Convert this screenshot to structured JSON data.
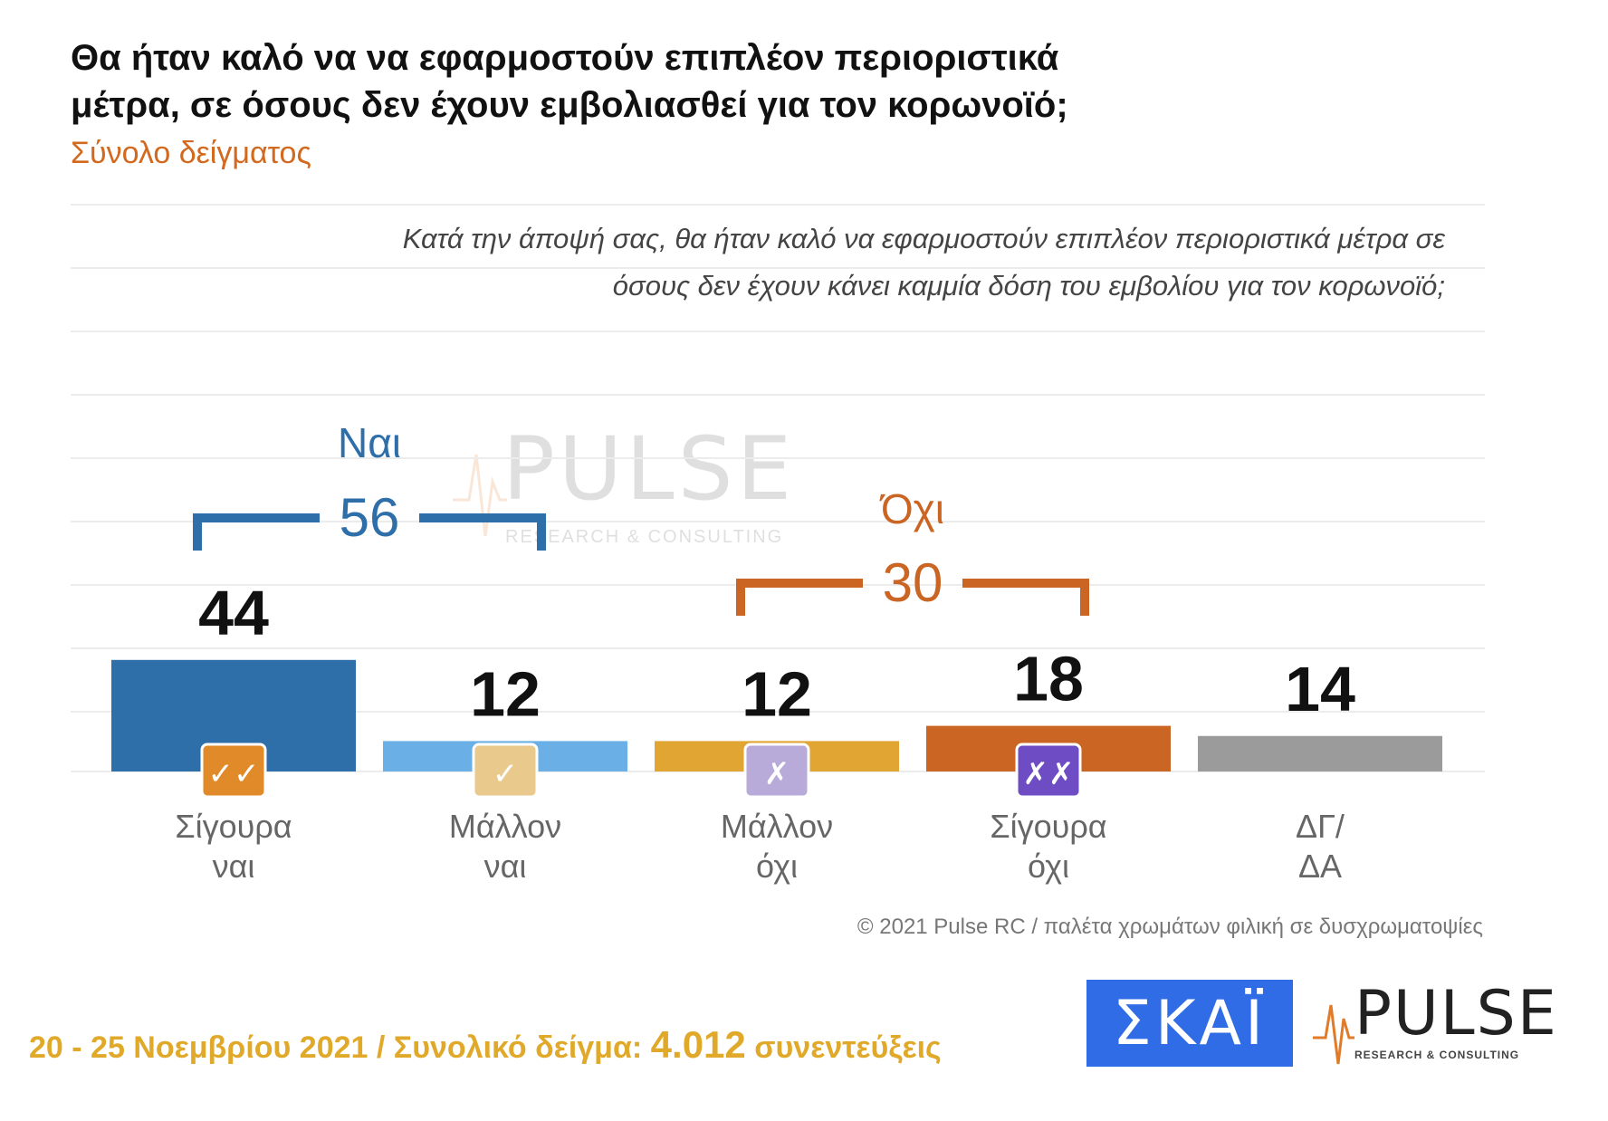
{
  "header": {
    "title": "Θα ήταν καλό να να εφαρμοστούν επιπλέον περιοριστικά μέτρα, σε όσους δεν έχουν εμβολιασθεί για τον κορωνοϊό;",
    "subtitle": "Σύνολο δείγματος",
    "question": "Κατά την άποψή σας, θα ήταν καλό να εφαρμοστούν επιπλέον περιοριστικά μέτρα σε όσους δεν έχουν κάνει καμμία δόση του εμβολίου για τον κορωνοϊό;"
  },
  "chart_data": {
    "type": "bar",
    "categories": [
      "Σίγουρα ναι",
      "Μάλλον ναι",
      "Μάλλον όχι",
      "Σίγουρα όχι",
      "ΔΓ/ ΔΑ"
    ],
    "category_lines": [
      [
        "Σίγουρα",
        "ναι"
      ],
      [
        "Μάλλον",
        "ναι"
      ],
      [
        "Μάλλον",
        "όχι"
      ],
      [
        "Σίγουρα",
        "όχι"
      ],
      [
        "ΔΓ/",
        "ΔΑ"
      ]
    ],
    "values": [
      44,
      12,
      12,
      18,
      14
    ],
    "colors": [
      "#2e6ea9",
      "#6aafe6",
      "#e0a532",
      "#cb6524",
      "#9b9b9b"
    ],
    "badge_icons": [
      "double-check-icon",
      "check-icon",
      "cross-icon",
      "double-cross-icon",
      null
    ],
    "badge_glyphs": [
      "✓✓",
      "✓",
      "✗",
      "✗✗",
      ""
    ],
    "badge_colors": [
      "#e08a2a",
      "#e9c98c",
      "#b8abd9",
      "#6d4cc4",
      ""
    ],
    "groups": [
      {
        "label": "Ναι",
        "total": 56,
        "members": [
          0,
          1
        ],
        "color": "#2e6ea9"
      },
      {
        "label": "Όχι",
        "total": 30,
        "members": [
          2,
          3
        ],
        "color": "#cb6524"
      }
    ],
    "ylim": [
      0,
      100
    ],
    "grid": true
  },
  "watermark": {
    "word": "PULSE",
    "tag": "RESEARCH & CONSULTING"
  },
  "copyright": "© 2021 Pulse RC / παλέτα χρωμάτων φιλική σε δυσχρωματοψίες",
  "footer": {
    "dates": "20 - 25 Νοεμβρίου 2021",
    "sep": "/",
    "sample_label": "Συνολικό δείγμα:",
    "sample_value": "4.012",
    "sample_unit": "συνεντεύξεις"
  },
  "logos": {
    "skai": "ΣΚΑΪ",
    "pulse_word": "PULSE",
    "pulse_tag": "RESEARCH & CONSULTING"
  }
}
